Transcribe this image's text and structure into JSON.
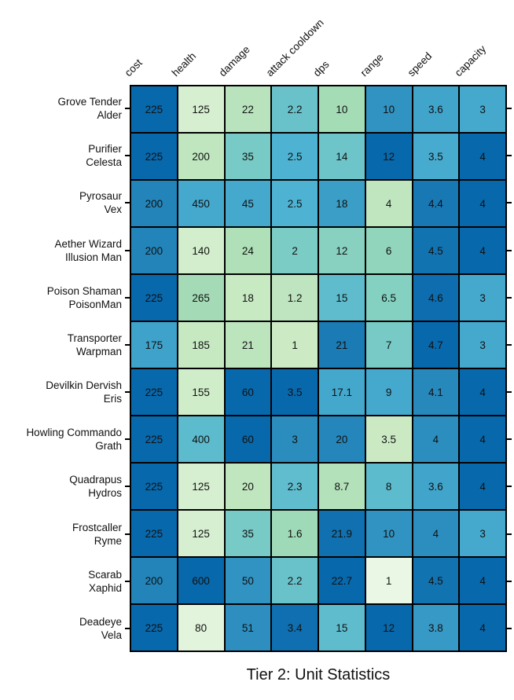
{
  "chart_data": {
    "type": "heatmap",
    "title": "Tier 2: Unit Statistics",
    "columns": [
      "cost",
      "health",
      "damage",
      "attack cooldown",
      "dps",
      "range",
      "speed",
      "capacity"
    ],
    "rows": [
      {
        "label_line1": "Grove Tender",
        "label_line2": "Alder",
        "values": [
          225,
          125,
          22,
          2.2,
          10,
          10,
          3.6,
          3
        ]
      },
      {
        "label_line1": "Purifier",
        "label_line2": "Celesta",
        "values": [
          225,
          200,
          35,
          2.5,
          14,
          12,
          3.5,
          4
        ]
      },
      {
        "label_line1": "Pyrosaur",
        "label_line2": "Vex",
        "values": [
          200,
          450,
          45,
          2.5,
          18,
          4,
          4.4,
          4
        ]
      },
      {
        "label_line1": "Aether Wizard",
        "label_line2": "Illusion Man",
        "values": [
          200,
          140,
          24,
          2,
          12,
          6,
          4.5,
          4
        ]
      },
      {
        "label_line1": "Poison Shaman",
        "label_line2": "PoisonMan",
        "values": [
          225,
          265,
          18,
          1.2,
          15,
          6.5,
          4.6,
          3
        ]
      },
      {
        "label_line1": "Transporter",
        "label_line2": "Warpman",
        "values": [
          175,
          185,
          21,
          1,
          21,
          7,
          4.7,
          3
        ]
      },
      {
        "label_line1": "Devilkin Dervish",
        "label_line2": "Eris",
        "values": [
          225,
          155,
          60,
          3.5,
          17.1,
          9,
          4.1,
          4
        ]
      },
      {
        "label_line1": "Howling Commando",
        "label_line2": "Grath",
        "values": [
          225,
          400,
          60,
          3,
          20,
          3.5,
          4,
          4
        ]
      },
      {
        "label_line1": "Quadrapus",
        "label_line2": "Hydros",
        "values": [
          225,
          125,
          20,
          2.3,
          8.7,
          8,
          3.6,
          4
        ]
      },
      {
        "label_line1": "Frostcaller",
        "label_line2": "Ryme",
        "values": [
          225,
          125,
          35,
          1.6,
          21.9,
          10,
          4,
          3
        ]
      },
      {
        "label_line1": "Scarab",
        "label_line2": "Xaphid",
        "values": [
          200,
          600,
          50,
          2.2,
          22.7,
          1,
          4.5,
          4
        ]
      },
      {
        "label_line1": "Deadeye",
        "label_line2": "Vela",
        "values": [
          225,
          80,
          51,
          3.4,
          15,
          12,
          3.8,
          4
        ]
      }
    ],
    "colormap": {
      "name": "GnBu",
      "stops": [
        "#f7fcf0",
        "#e0f3db",
        "#ccebc5",
        "#a8ddb5",
        "#7bccc4",
        "#4eb3d3",
        "#2b8cbe",
        "#0868ac",
        "#084081"
      ],
      "normalization": "per-column: t = 0.875 * value / column_max",
      "scale_factor": 0.875
    },
    "grid_line_color": "#000000",
    "cell_text_color": "#111111",
    "background_color": "#ffffff",
    "legend": "none",
    "grid_on": true
  }
}
